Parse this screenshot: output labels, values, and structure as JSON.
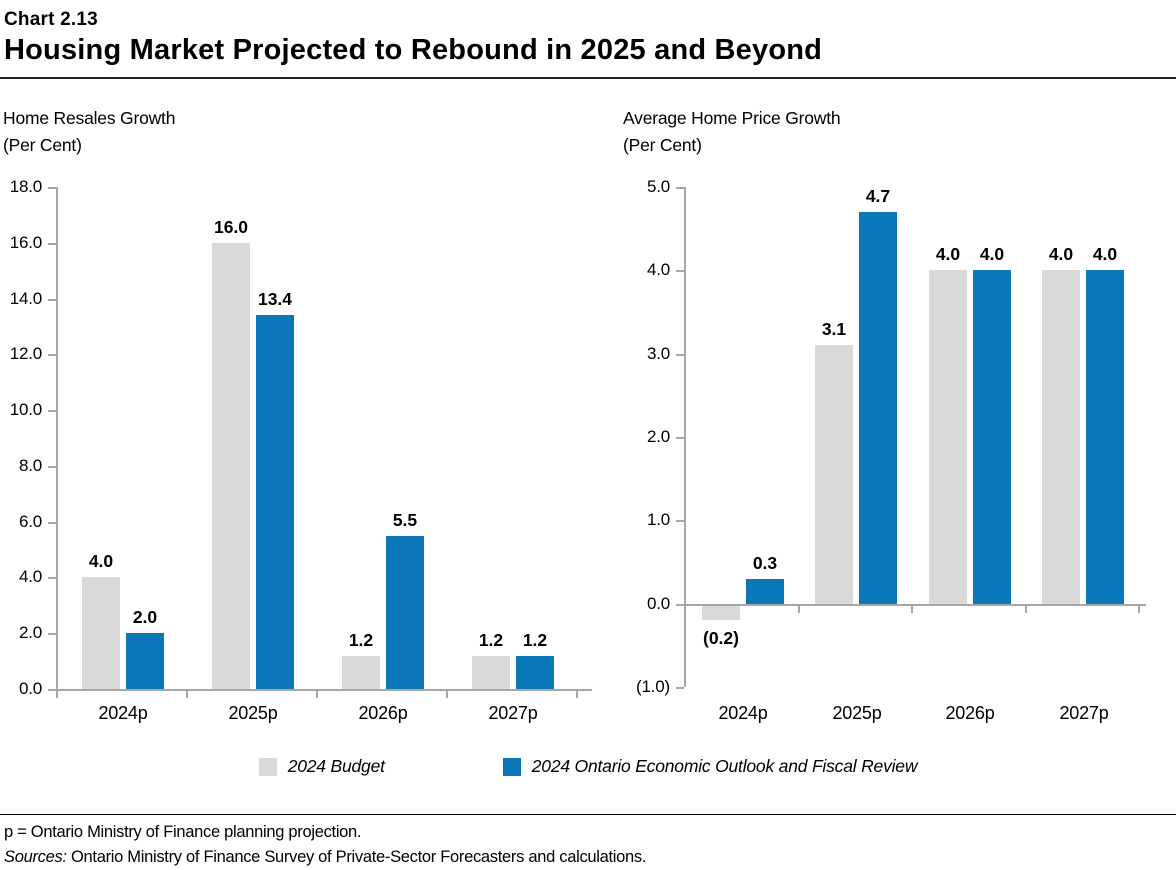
{
  "header": {
    "chart_number": "Chart 2.13",
    "title": "Housing Market Projected to Rebound in 2025 and Beyond"
  },
  "colors": {
    "budget_gray": "#d9d9d9",
    "outlook_blue": "#0b76b8",
    "axis_gray": "#a6a6a6"
  },
  "chart_data": [
    {
      "type": "bar",
      "title": "Home Resales Growth",
      "units_label": "(Per Cent)",
      "categories": [
        "2024p",
        "2025p",
        "2026p",
        "2027p"
      ],
      "series": [
        {
          "name": "2024 Budget",
          "color": "#d9d9d9",
          "values": [
            4.0,
            16.0,
            1.2,
            1.2
          ],
          "labels": [
            "4.0",
            "16.0",
            "1.2",
            "1.2"
          ]
        },
        {
          "name": "2024 Ontario Economic Outlook and Fiscal Review",
          "color": "#0b76b8",
          "values": [
            2.0,
            13.4,
            5.5,
            1.2
          ],
          "labels": [
            "2.0",
            "13.4",
            "5.5",
            "1.2"
          ]
        }
      ],
      "ylim": [
        0,
        18
      ],
      "grid": false,
      "legend_position": "shared-bottom",
      "yticks": [
        {
          "value": 0,
          "label": "0.0"
        },
        {
          "value": 2,
          "label": "2.0"
        },
        {
          "value": 4,
          "label": "4.0"
        },
        {
          "value": 6,
          "label": "6.0"
        },
        {
          "value": 8,
          "label": "8.0"
        },
        {
          "value": 10,
          "label": "10.0"
        },
        {
          "value": 12,
          "label": "12.0"
        },
        {
          "value": 14,
          "label": "14.0"
        },
        {
          "value": 16,
          "label": "16.0"
        },
        {
          "value": 18,
          "label": "18.0"
        }
      ]
    },
    {
      "type": "bar",
      "title": "Average Home Price Growth",
      "units_label": "(Per Cent)",
      "categories": [
        "2024p",
        "2025p",
        "2026p",
        "2027p"
      ],
      "series": [
        {
          "name": "2024 Budget",
          "color": "#d9d9d9",
          "values": [
            -0.2,
            3.1,
            4.0,
            4.0
          ],
          "labels": [
            "(0.2)",
            "3.1",
            "4.0",
            "4.0"
          ]
        },
        {
          "name": "2024 Ontario Economic Outlook and Fiscal Review",
          "color": "#0b76b8",
          "values": [
            0.3,
            4.7,
            4.0,
            4.0
          ],
          "labels": [
            "0.3",
            "4.7",
            "4.0",
            "4.0"
          ]
        }
      ],
      "ylim": [
        -1,
        5
      ],
      "grid": false,
      "legend_position": "shared-bottom",
      "yticks": [
        {
          "value": -1,
          "label": "(1.0)"
        },
        {
          "value": 0,
          "label": "0.0"
        },
        {
          "value": 1,
          "label": "1.0"
        },
        {
          "value": 2,
          "label": "2.0"
        },
        {
          "value": 3,
          "label": "3.0"
        },
        {
          "value": 4,
          "label": "4.0"
        },
        {
          "value": 5,
          "label": "5.0"
        }
      ]
    }
  ],
  "legend": {
    "items": [
      {
        "label": "2024 Budget",
        "color": "#d9d9d9"
      },
      {
        "label": "2024 Ontario Economic Outlook and Fiscal Review",
        "color": "#0b76b8"
      }
    ]
  },
  "footer": {
    "note": "p = Ontario Ministry of Finance planning projection.",
    "sources_label": "Sources:",
    "sources_text": " Ontario Ministry of Finance Survey of Private-Sector Forecasters and calculations."
  }
}
